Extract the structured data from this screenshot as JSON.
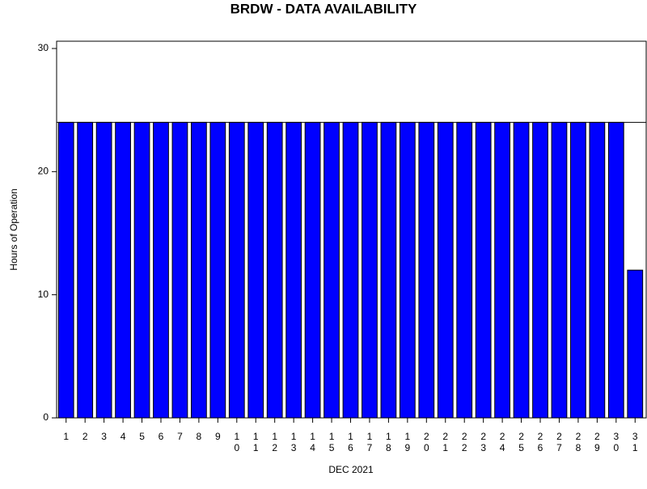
{
  "chart_data": {
    "type": "bar",
    "title": "BRDW - DATA AVAILABILITY",
    "x_label": "DEC 2021",
    "y_label": "Hours of Operation",
    "categories": [
      "1",
      "2",
      "3",
      "4",
      "5",
      "6",
      "7",
      "8",
      "9",
      "10",
      "11",
      "12",
      "13",
      "14",
      "15",
      "16",
      "17",
      "18",
      "19",
      "20",
      "21",
      "22",
      "23",
      "24",
      "25",
      "26",
      "27",
      "28",
      "29",
      "30",
      "31"
    ],
    "values": [
      24,
      24,
      24,
      24,
      24,
      24,
      24,
      24,
      24,
      24,
      24,
      24,
      24,
      24,
      24,
      24,
      24,
      24,
      24,
      24,
      24,
      24,
      24,
      24,
      24,
      24,
      24,
      24,
      24,
      24,
      12
    ],
    "color": "#0000ff",
    "reference_line": 24,
    "ylim": [
      0,
      30
    ],
    "yticks": [
      0,
      10,
      20,
      30
    ],
    "grid": false
  }
}
